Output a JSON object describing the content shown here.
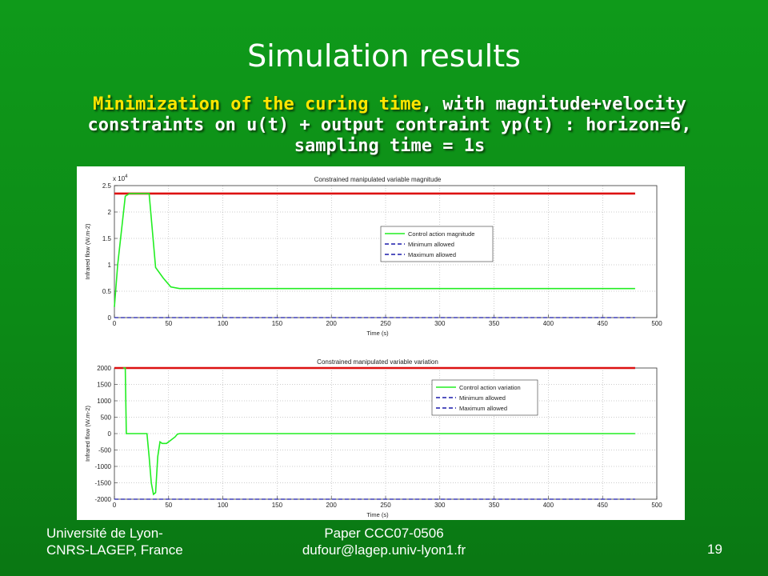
{
  "slide": {
    "title": "Simulation results",
    "subtitle_highlight": "Minimization of the curing time",
    "subtitle_rest": ", with magnitude+velocity constraints on u(t) + output contraint yp(t) : horizon=6, sampling time = 1s"
  },
  "footer": {
    "left_line1": "Université de Lyon-",
    "left_line2": "CNRS-LAGEP, France",
    "center_line1": "Paper CCC07-0506",
    "center_line2": "dufour@lagep.univ-lyon1.fr",
    "page_number": "19"
  },
  "colors": {
    "control": "#22ee22",
    "limit_line": "#dd1111",
    "bound_dash": "#1a1aaa"
  },
  "chart_data": [
    {
      "type": "line",
      "title": "Constrained manipulated variable magnitude",
      "xlabel": "Time (s)",
      "ylabel": "Infrared flow (W.m-2)",
      "y_multiplier": "x 10",
      "y_multiplier_exp": "4",
      "xlim": [
        0,
        500
      ],
      "ylim": [
        0,
        2.5
      ],
      "xticks": [
        0,
        50,
        100,
        150,
        200,
        250,
        300,
        350,
        400,
        450,
        500
      ],
      "yticks": [
        0,
        0.5,
        1,
        1.5,
        2,
        2.5
      ],
      "ytick_labels": [
        "0",
        "0.5",
        "1",
        "1.5",
        "2",
        "2.5"
      ],
      "grid": true,
      "legend_position": "right",
      "series": [
        {
          "name": "Control action magnitude",
          "style": "solid",
          "color": "#22ee22",
          "x": [
            0,
            3,
            10,
            14,
            16,
            28,
            32,
            38,
            45,
            52,
            60,
            100,
            200,
            300,
            400,
            480
          ],
          "y": [
            0.2,
            1.0,
            2.3,
            2.35,
            2.35,
            2.35,
            2.35,
            0.95,
            0.75,
            0.58,
            0.55,
            0.55,
            0.55,
            0.55,
            0.55,
            0.55
          ]
        },
        {
          "name": "Minimum allowed",
          "style": "dashed",
          "color": "#1a1aaa",
          "x": [
            0,
            480
          ],
          "y": [
            0,
            0
          ]
        },
        {
          "name": "Maximum allowed",
          "style": "dashed",
          "color": "#1a1aaa",
          "x": [
            0,
            480
          ],
          "y": [
            2.35,
            2.35
          ]
        },
        {
          "style": "solid",
          "color": "#dd1111",
          "x": [
            0,
            480
          ],
          "y": [
            2.35,
            2.35
          ]
        }
      ]
    },
    {
      "type": "line",
      "title": "Constrained manipulated variable variation",
      "xlabel": "Time (s)",
      "ylabel": "Infrared flow  (W.m-2)",
      "xlim": [
        0,
        500
      ],
      "ylim": [
        -2000,
        2000
      ],
      "xticks": [
        0,
        50,
        100,
        150,
        200,
        250,
        300,
        350,
        400,
        450,
        500
      ],
      "yticks": [
        -2000,
        -1500,
        -1000,
        -500,
        0,
        500,
        1000,
        1500,
        2000
      ],
      "ytick_labels": [
        "-2000",
        "-1500",
        "-1000",
        "-500",
        "0",
        "500",
        "1000",
        "1500",
        "2000"
      ],
      "grid": true,
      "legend_position": "right",
      "series": [
        {
          "name": "Control action variation",
          "style": "solid",
          "color": "#22ee22",
          "x": [
            8,
            10,
            11,
            30,
            32,
            34,
            36,
            38,
            40,
            42,
            44,
            48,
            52,
            56,
            58,
            60,
            100,
            200,
            300,
            400,
            480
          ],
          "y": [
            2000,
            2000,
            0,
            0,
            -700,
            -1500,
            -1850,
            -1800,
            -700,
            -250,
            -300,
            -300,
            -200,
            -100,
            -20,
            0,
            0,
            0,
            0,
            0,
            0
          ]
        },
        {
          "name": "Minimum allowed",
          "style": "dashed",
          "color": "#1a1aaa",
          "x": [
            0,
            480
          ],
          "y": [
            -2000,
            -2000
          ]
        },
        {
          "name": "Maximum allowed",
          "style": "dashed",
          "color": "#1a1aaa",
          "x": [
            0,
            480
          ],
          "y": [
            2000,
            2000
          ]
        },
        {
          "style": "solid",
          "color": "#dd1111",
          "x": [
            0,
            480
          ],
          "y": [
            2000,
            2000
          ]
        }
      ]
    }
  ]
}
